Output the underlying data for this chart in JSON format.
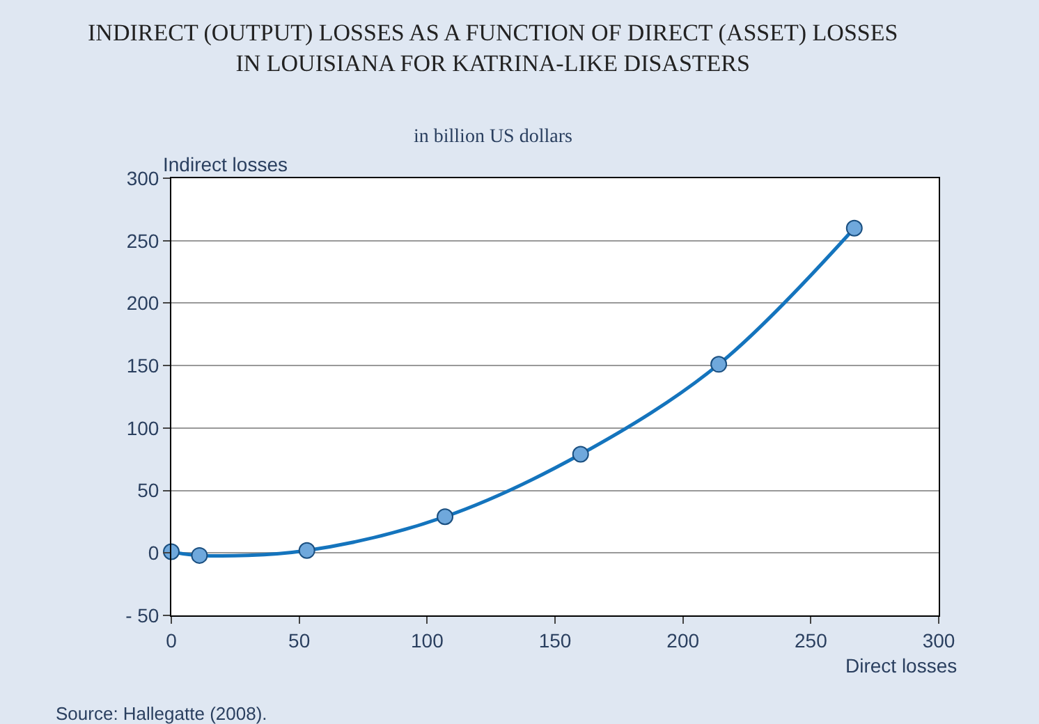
{
  "chart_data": {
    "type": "line",
    "title": "INDIRECT (OUTPUT) LOSSES AS A FUNCTION OF DIRECT (ASSET) LOSSES IN LOUISIANA FOR KATRINA-LIKE DISASTERS",
    "subtitle": "in billion US dollars",
    "xlabel": "Direct losses",
    "ylabel": "Indirect losses",
    "annotations": [
      "Source: Hallegatte (2008)."
    ],
    "x": [
      0,
      11,
      53,
      107,
      160,
      214,
      267
    ],
    "series": [
      {
        "color": "#1474bd",
        "values": [
          1,
          -2,
          2,
          29,
          79,
          151,
          260
        ]
      }
    ],
    "marker": "circle",
    "line_style": "solid",
    "xlim": [
      0,
      300
    ],
    "xticks": [
      0,
      50,
      100,
      150,
      200,
      250,
      300
    ],
    "ylim": [
      -50,
      300
    ],
    "yticks": [
      {
        "value": -50,
        "label": "- 50"
      },
      0,
      50,
      100,
      150,
      200,
      250,
      300
    ],
    "grid": "y"
  }
}
